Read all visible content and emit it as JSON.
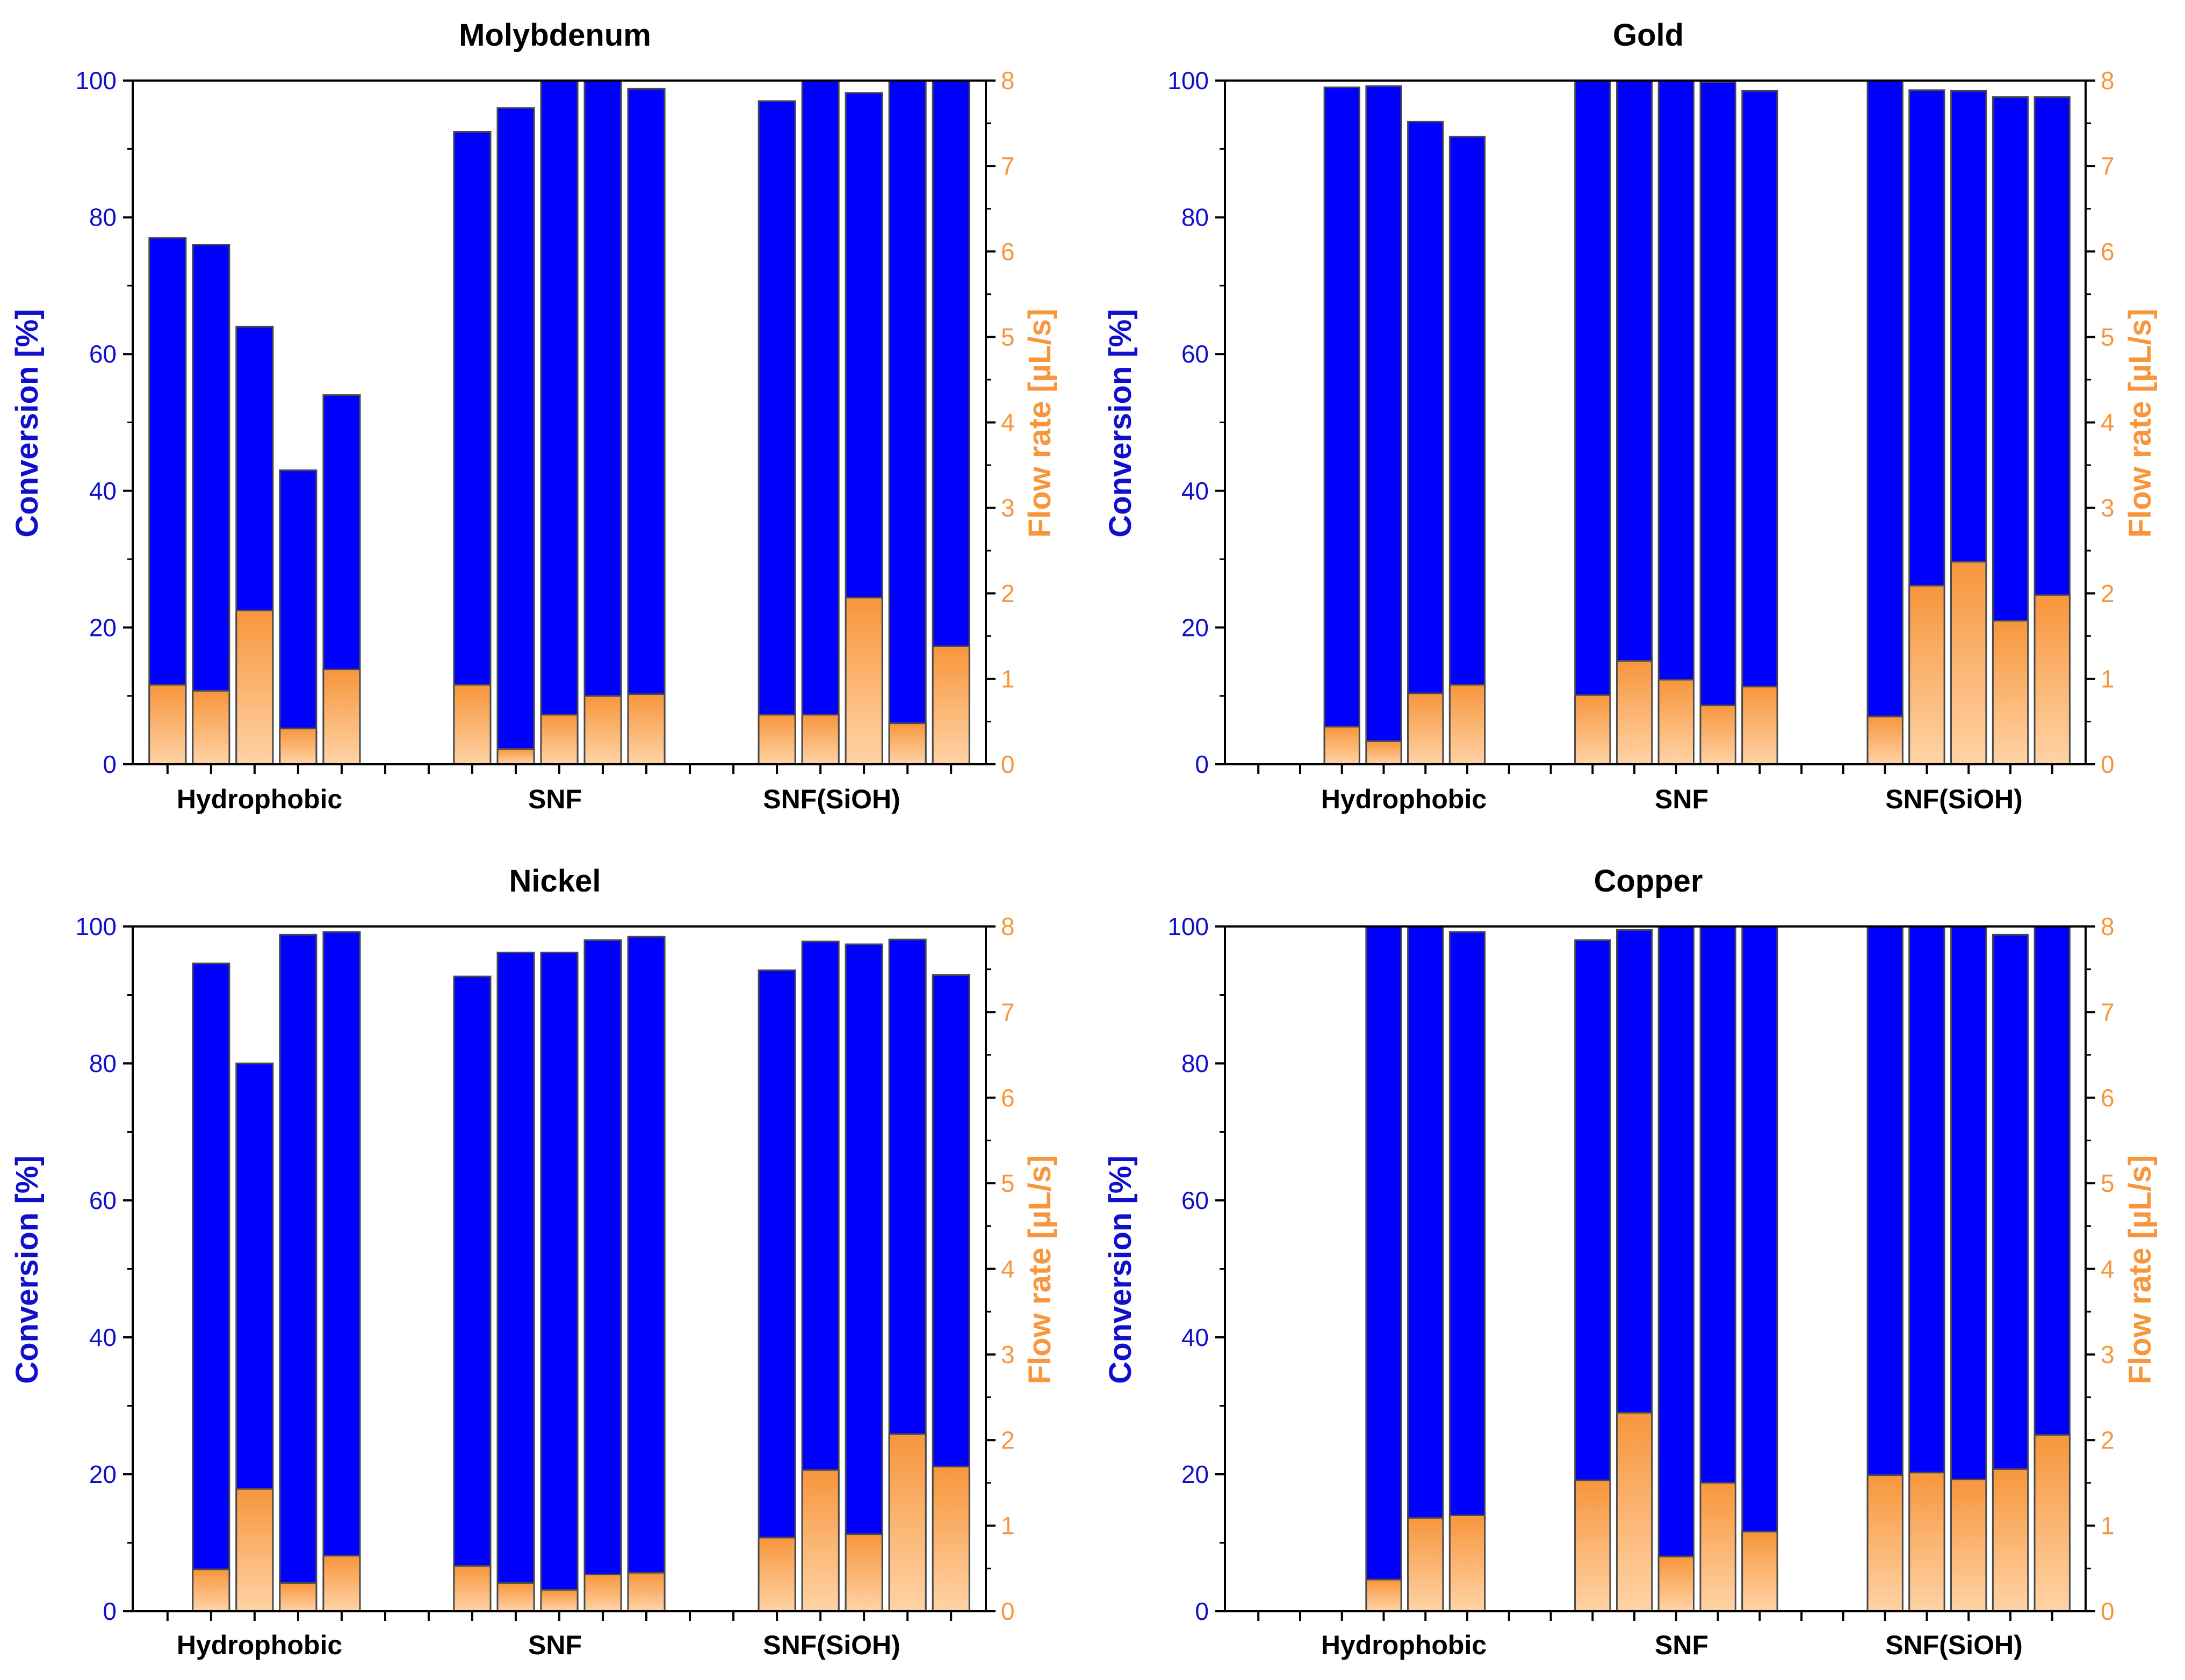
{
  "colors": {
    "conversion": "#0000FF",
    "conversion_axis": "#1010CC",
    "flow": "#F7963C",
    "flow_light": "#FFD3A6",
    "bar_edge": "#4A4A4A",
    "axis": "#000000"
  },
  "chart_data": [
    {
      "type": "bar",
      "title": "Molybdenum",
      "ylabel": "Conversion [%]",
      "y2label": "Flow rate [µL/s]",
      "ylim": [
        0,
        100
      ],
      "y2lim": [
        0,
        8
      ],
      "yticks": [
        "0",
        "20",
        "40",
        "60",
        "80",
        "100"
      ],
      "y2ticks": [
        "0",
        "1",
        "2",
        "3",
        "4",
        "5",
        "6",
        "7",
        "8"
      ],
      "groups": [
        "Hydrophobic",
        "SNF",
        "SNF(SiOH)"
      ],
      "series": [
        {
          "name": "Conversion",
          "axis": "left",
          "values": [
            77,
            76,
            64,
            43,
            54,
            null,
            null,
            92.5,
            96,
            100,
            100,
            98.8,
            null,
            null,
            97,
            100,
            98.2,
            100,
            100
          ]
        },
        {
          "name": "Flow rate",
          "axis": "right",
          "values": [
            0.93,
            0.86,
            1.8,
            0.42,
            1.11,
            null,
            null,
            0.93,
            0.18,
            0.58,
            0.8,
            0.82,
            null,
            null,
            0.58,
            0.58,
            1.95,
            0.48,
            1.38
          ]
        }
      ]
    },
    {
      "type": "bar",
      "title": "Gold",
      "ylabel": "Conversion [%]",
      "y2label": "Flow rate [µL/s]",
      "ylim": [
        0,
        100
      ],
      "y2lim": [
        0,
        8
      ],
      "yticks": [
        "0",
        "20",
        "40",
        "60",
        "80",
        "100"
      ],
      "y2ticks": [
        "0",
        "1",
        "2",
        "3",
        "4",
        "5",
        "6",
        "7",
        "8"
      ],
      "groups": [
        "Hydrophobic",
        "SNF",
        "SNF(SiOH)"
      ],
      "series": [
        {
          "name": "Conversion",
          "axis": "left",
          "values": [
            null,
            null,
            99,
            99.2,
            94,
            91.8,
            null,
            null,
            100,
            100,
            100,
            99.8,
            98.5,
            null,
            null,
            100,
            98.6,
            98.5,
            97.6,
            97.6
          ]
        },
        {
          "name": "Flow rate",
          "axis": "right",
          "values": [
            null,
            null,
            0.44,
            0.27,
            0.83,
            0.93,
            null,
            null,
            0.81,
            1.21,
            0.99,
            0.69,
            0.91,
            null,
            null,
            0.56,
            2.09,
            2.37,
            1.68,
            1.98
          ]
        }
      ]
    },
    {
      "type": "bar",
      "title": "Nickel",
      "ylabel": "Conversion [%]",
      "y2label": "Flow rate [µL/s]",
      "ylim": [
        0,
        100
      ],
      "y2lim": [
        0,
        8
      ],
      "yticks": [
        "0",
        "20",
        "40",
        "60",
        "80",
        "100"
      ],
      "y2ticks": [
        "0",
        "1",
        "2",
        "3",
        "4",
        "5",
        "6",
        "7",
        "8"
      ],
      "groups": [
        "Hydrophobic",
        "SNF",
        "SNF(SiOH)"
      ],
      "series": [
        {
          "name": "Conversion",
          "axis": "left",
          "values": [
            null,
            94.6,
            80,
            98.8,
            99.2,
            null,
            null,
            92.7,
            96.2,
            96.2,
            98,
            98.5,
            null,
            null,
            93.6,
            97.8,
            97.4,
            98.1,
            92.9
          ]
        },
        {
          "name": "Flow rate",
          "axis": "right",
          "values": [
            null,
            0.49,
            1.43,
            0.33,
            0.65,
            null,
            null,
            0.53,
            0.33,
            0.25,
            0.43,
            0.45,
            null,
            null,
            0.86,
            1.65,
            0.9,
            2.07,
            1.69
          ]
        }
      ]
    },
    {
      "type": "bar",
      "title": "Copper",
      "ylabel": "Conversion [%]",
      "y2label": "Flow rate [µL/s]",
      "ylim": [
        0,
        100
      ],
      "y2lim": [
        0,
        8
      ],
      "yticks": [
        "0",
        "20",
        "40",
        "60",
        "80",
        "100"
      ],
      "y2ticks": [
        "0",
        "1",
        "2",
        "3",
        "4",
        "5",
        "6",
        "7",
        "8"
      ],
      "groups": [
        "Hydrophobic",
        "SNF",
        "SNF(SiOH)"
      ],
      "series": [
        {
          "name": "Conversion",
          "axis": "left",
          "values": [
            null,
            null,
            null,
            100,
            100,
            99.2,
            null,
            null,
            98,
            99.5,
            100,
            100,
            100,
            null,
            null,
            100,
            100,
            100,
            98.8,
            100
          ]
        },
        {
          "name": "Flow rate",
          "axis": "right",
          "values": [
            null,
            null,
            null,
            0.37,
            1.09,
            1.12,
            null,
            null,
            1.53,
            2.32,
            0.64,
            1.5,
            0.93,
            null,
            null,
            1.59,
            1.62,
            1.54,
            1.66,
            2.06
          ]
        }
      ]
    }
  ]
}
